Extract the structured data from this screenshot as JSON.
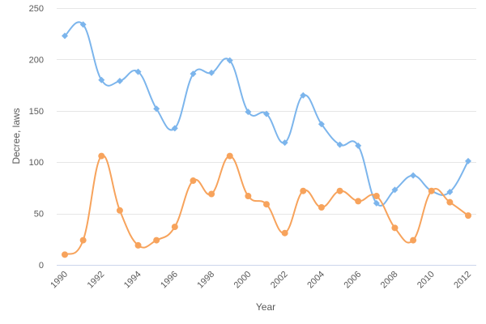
{
  "chart_data": {
    "type": "line",
    "xlabel": "Year",
    "ylabel": "Decree, laws",
    "ylim": [
      0,
      250
    ],
    "yticks": [
      0,
      50,
      100,
      150,
      200,
      250
    ],
    "xticks": [
      1990,
      1992,
      1994,
      1996,
      1998,
      2000,
      2002,
      2004,
      2006,
      2008,
      2010,
      2012
    ],
    "grid": "horizontal",
    "smooth": true,
    "x": [
      1990,
      1991,
      1992,
      1993,
      1994,
      1995,
      1996,
      1997,
      1998,
      1999,
      2000,
      2001,
      2002,
      2003,
      2004,
      2005,
      2006,
      2007,
      2008,
      2009,
      2010,
      2011,
      2012
    ],
    "series": [
      {
        "color": "#7cb5ec",
        "marker": "diamond",
        "values": [
          223,
          234,
          180,
          179,
          188,
          152,
          133,
          186,
          187,
          199,
          149,
          147,
          119,
          165,
          137,
          117,
          116,
          60,
          73,
          87,
          72,
          71,
          101
        ]
      },
      {
        "color": "#f7a35c",
        "marker": "circle",
        "values": [
          10,
          24,
          106,
          53,
          19,
          24,
          37,
          82,
          69,
          106,
          67,
          59,
          31,
          72,
          56,
          72,
          62,
          67,
          36,
          24,
          72,
          61,
          48
        ]
      }
    ]
  }
}
